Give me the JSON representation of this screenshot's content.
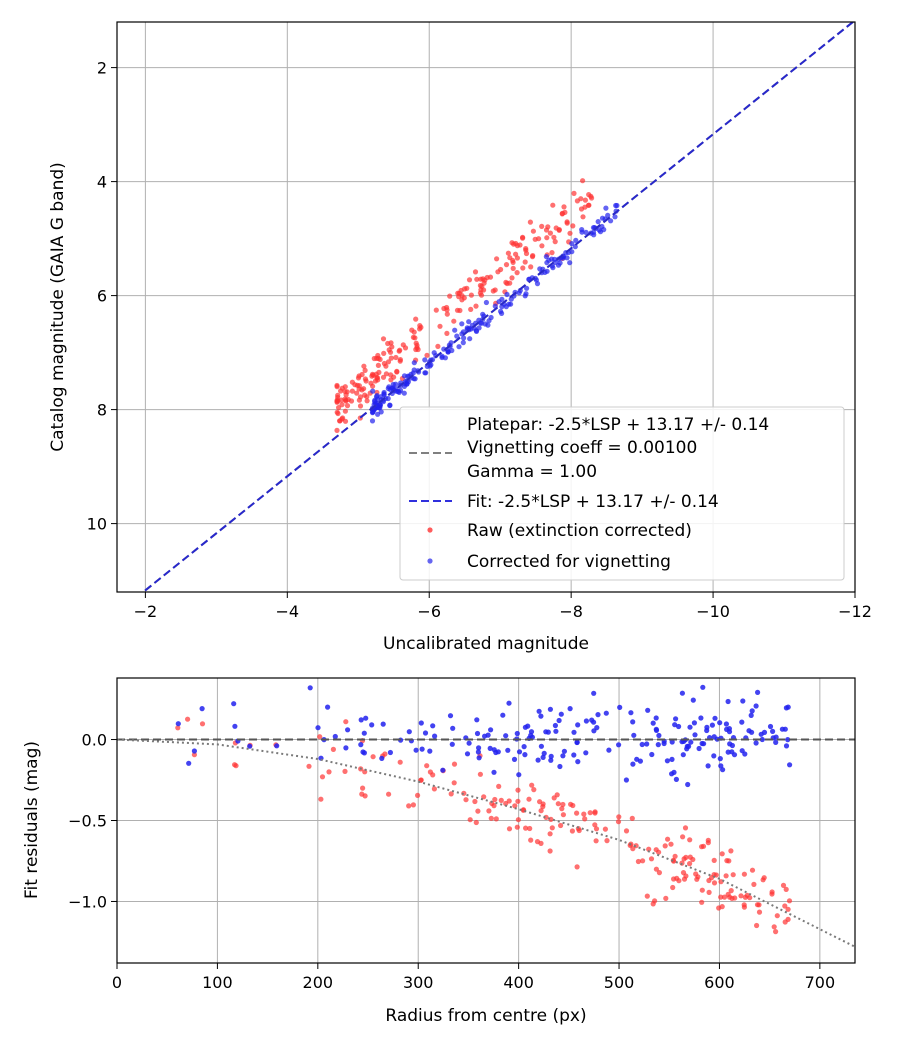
{
  "chart_data": [
    {
      "type": "scatter",
      "xlabel": "Uncalibrated magnitude",
      "ylabel": "Catalog magnitude (GAIA G band)",
      "xlim": [
        -1.6,
        -12.0
      ],
      "ylim": [
        11.2,
        1.2
      ],
      "x_inverted": true,
      "y_inverted": true,
      "xticks": [
        -2,
        -4,
        -6,
        -8,
        -10,
        -12
      ],
      "yticks": [
        2,
        4,
        6,
        8,
        10
      ],
      "xtick_labels": [
        "−2",
        "−4",
        "−6",
        "−8",
        "−10",
        "−12"
      ],
      "ytick_labels": [
        "2",
        "4",
        "6",
        "8",
        "10"
      ],
      "grid": true,
      "legend_position": "lower-right",
      "legend": [
        {
          "text": "Platepar: -2.5*LSP + 13.17 +/- 0.14",
          "kind": "dashed-line",
          "color": "#808080"
        },
        {
          "text": "Vignetting coeff = 0.00100",
          "kind": "none",
          "color": ""
        },
        {
          "text": "Gamma = 1.00",
          "kind": "none",
          "color": ""
        },
        {
          "text": "Fit: -2.5*LSP + 13.17 +/- 0.14",
          "kind": "dashed-line",
          "color": "#3030dd"
        },
        {
          "text": "Raw (extinction corrected)",
          "kind": "dot",
          "color": "#ff3333"
        },
        {
          "text": "Corrected for vignetting",
          "kind": "dot",
          "color": "#4040ee"
        }
      ],
      "lines": [
        {
          "name": "Platepar",
          "style": "dashed",
          "color": "#808080",
          "slope_note": "y = 13.17 + x",
          "x": [
            -1.6,
            -12.0
          ],
          "y": [
            11.57,
            1.17
          ]
        },
        {
          "name": "Fit",
          "style": "dashed",
          "color": "#2828cc",
          "x": [
            -1.6,
            -12.0
          ],
          "y": [
            11.57,
            1.17
          ]
        }
      ],
      "series": [
        {
          "name": "Raw (extinction corrected)",
          "color": "#ff3333",
          "band": {
            "x_range": [
              -4.7,
              -8.3
            ],
            "offset_center": -0.55,
            "offset_spread": 0.35
          }
        },
        {
          "name": "Corrected for vignetting",
          "color": "#2222ee",
          "band": {
            "x_range": [
              -5.2,
              -8.8
            ],
            "offset_center": 0.0,
            "offset_spread": 0.14
          }
        }
      ]
    },
    {
      "type": "scatter",
      "xlabel": "Radius from centre (px)",
      "ylabel": "Fit residuals (mag)",
      "xlim": [
        0,
        735
      ],
      "ylim": [
        -1.38,
        0.38
      ],
      "xticks": [
        0,
        100,
        200,
        300,
        400,
        500,
        600,
        700
      ],
      "yticks": [
        0.0,
        -0.5,
        -1.0
      ],
      "xtick_labels": [
        "0",
        "100",
        "200",
        "300",
        "400",
        "500",
        "600",
        "700"
      ],
      "ytick_labels": [
        "0.0",
        "−0.5",
        "−1.0"
      ],
      "grid": true,
      "lines": [
        {
          "name": "zero",
          "style": "dashed",
          "color": "#555555",
          "x": [
            0,
            735
          ],
          "y": [
            0,
            0
          ]
        },
        {
          "name": "vignetting model",
          "style": "dotted",
          "color": "#7a7a7a",
          "x": [
            0,
            100,
            200,
            300,
            400,
            500,
            600,
            735
          ],
          "y": [
            0,
            -0.03,
            -0.12,
            -0.26,
            -0.43,
            -0.62,
            -0.86,
            -1.28
          ]
        }
      ],
      "series": [
        {
          "name": "Raw (extinction corrected)",
          "color": "#ff3333",
          "radius_range": [
            35,
            670
          ],
          "trend": "model",
          "spread": 0.14
        },
        {
          "name": "Corrected for vignetting",
          "color": "#2222ee",
          "radius_range": [
            35,
            670
          ],
          "trend": "zero",
          "spread": 0.14
        }
      ]
    }
  ]
}
